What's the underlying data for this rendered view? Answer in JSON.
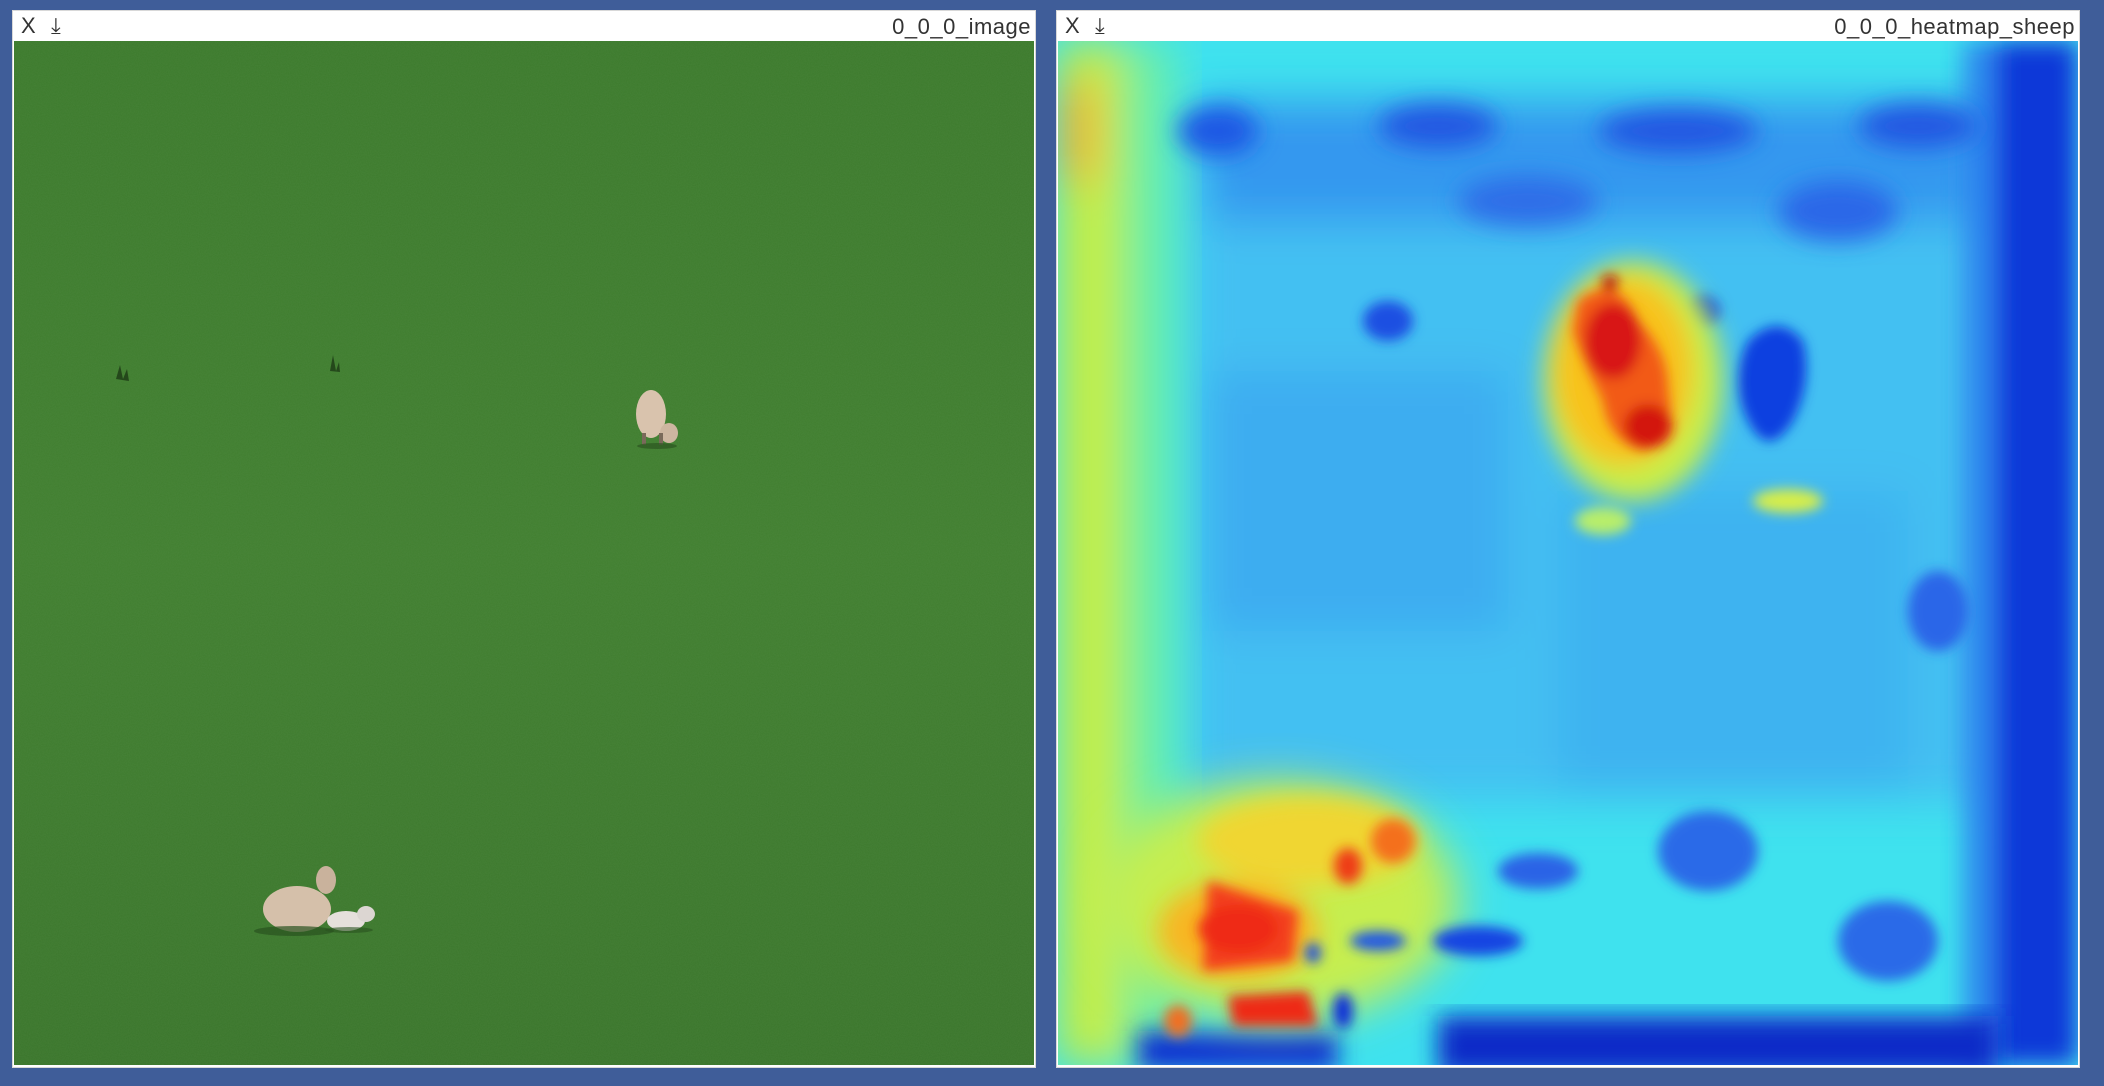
{
  "panes": [
    {
      "close_label": "X",
      "download_label": "⤓",
      "title": "0_0_0_image",
      "content": "grass-field-photo"
    },
    {
      "close_label": "X",
      "download_label": "⤓",
      "title": "0_0_0_heatmap_sheep",
      "content": "jet-colormap-heatmap"
    }
  ],
  "colors": {
    "page_background": "#3f5d99",
    "grass": "#3f7a2e",
    "sheep": "#d8c4b0",
    "heat_low": "#0b2fd6",
    "heat_mid": "#4de6f0",
    "heat_high": "#e8161b"
  }
}
